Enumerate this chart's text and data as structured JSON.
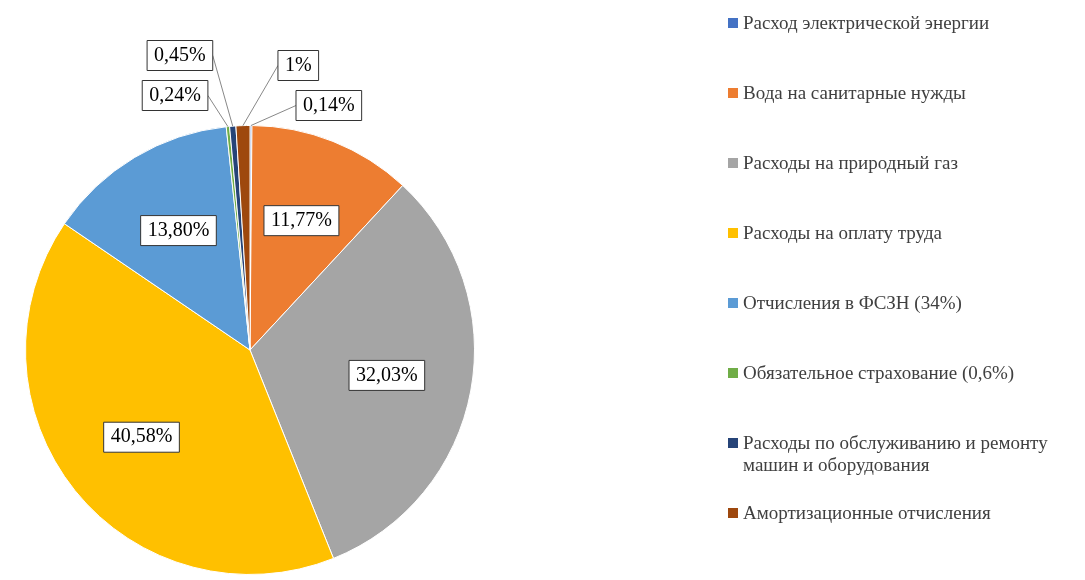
{
  "chart_data": {
    "type": "pie",
    "categories": [
      "Расход электрической энергии",
      "Вода на санитарные нужды",
      "Расходы на природный газ",
      "Расходы на оплату труда",
      "Отчисления в ФСЗН (34%)",
      "Обязательное страхование (0,6%)",
      "Расходы по обслуживанию и ремонту машин и оборудования",
      "Амортизационные отчисления"
    ],
    "values": [
      0.14,
      11.77,
      32.03,
      40.58,
      13.8,
      0.24,
      0.45,
      1
    ],
    "value_labels": [
      "0,14%",
      "11,77%",
      "32,03%",
      "40,58%",
      "13,80%",
      "0,24%",
      "0,45%",
      "1%"
    ],
    "colors": [
      "#4472c4",
      "#ed7d31",
      "#a5a5a5",
      "#ffc000",
      "#5b9bd5",
      "#70ad47",
      "#264478",
      "#9e480e"
    ],
    "legend": "right"
  }
}
